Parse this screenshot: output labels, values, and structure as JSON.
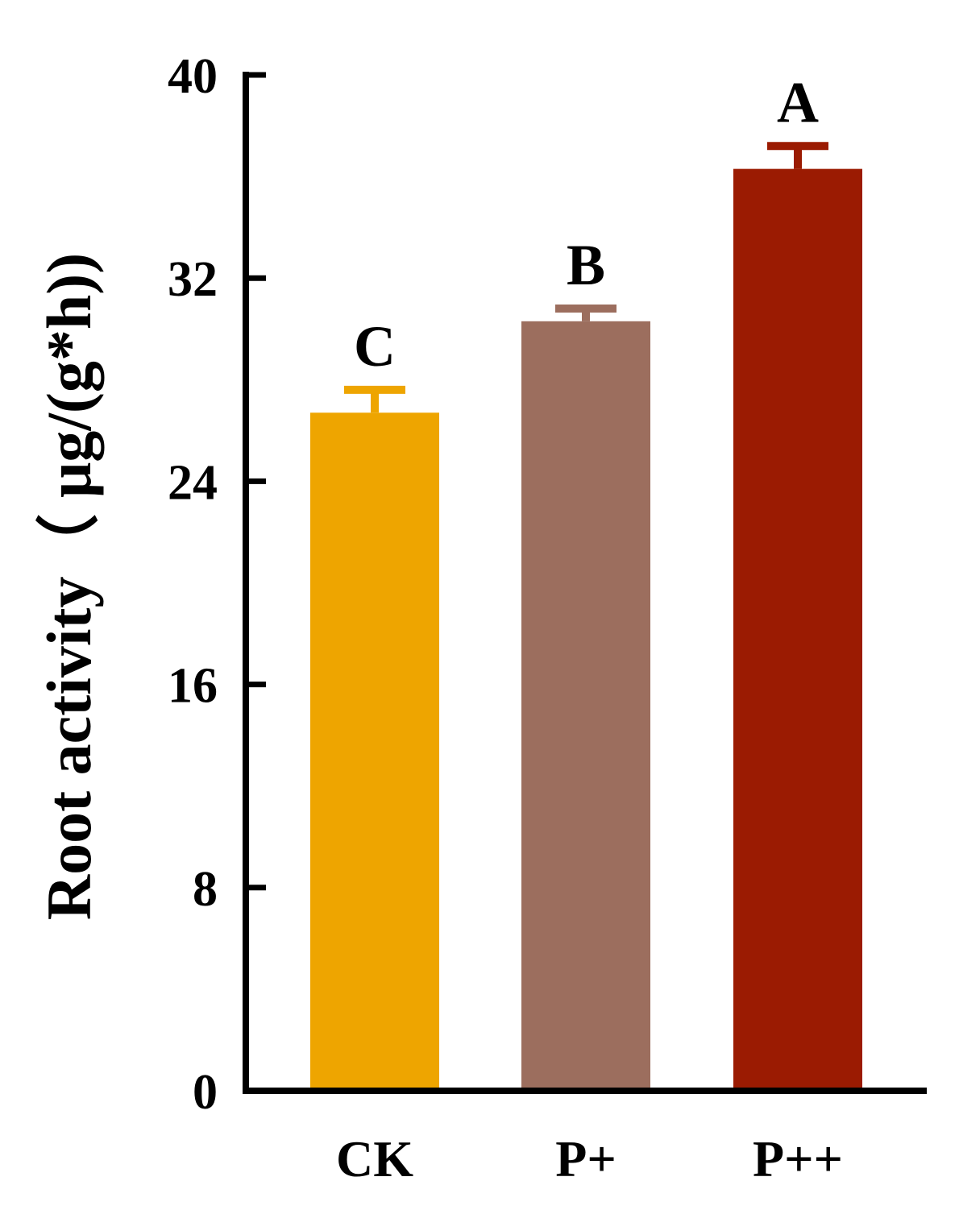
{
  "chart_data": {
    "type": "bar",
    "title": "",
    "xlabel": "",
    "ylabel": "Root activity（ μg/(g*h))",
    "ylim": [
      0,
      40
    ],
    "yticks": [
      0,
      8,
      16,
      24,
      32,
      40
    ],
    "ytick_labels": [
      "0",
      "8",
      "16",
      "24",
      "32",
      "40"
    ],
    "categories": [
      "CK",
      "P+",
      "P++"
    ],
    "values": [
      26.7,
      30.3,
      36.3
    ],
    "errors": [
      0.9,
      0.5,
      0.9
    ],
    "significance": [
      "C",
      "B",
      "A"
    ],
    "colors": [
      "#EEA500",
      "#9C6E5E",
      "#9B1B02"
    ],
    "grid": false,
    "legend": "none"
  }
}
